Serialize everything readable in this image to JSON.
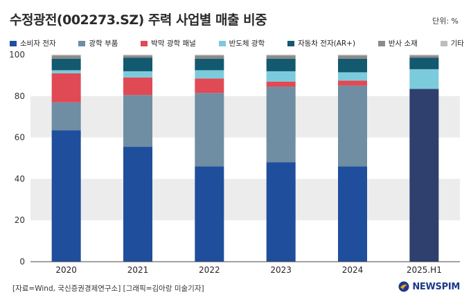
{
  "title": "수정광전(002273.SZ) 주력 사업별 매출 비중",
  "unit": "단위: %",
  "source": "[자료=Wind, 국신증권경제연구소] [그래픽=김아랑 미술기자]",
  "logo": "NEWSPIM",
  "colors": {
    "consumer": "#1f4e9c",
    "optics": "#6f8ea3",
    "film": "#e04a55",
    "semi": "#7ccbdc",
    "auto": "#13596f",
    "reflect": "#8a8a8a",
    "other": "#bdbdbd",
    "band": "#ececec"
  },
  "chart_data": {
    "type": "bar",
    "stacked": true,
    "categories": [
      "2020",
      "2021",
      "2022",
      "2023",
      "2024",
      "2025.H1"
    ],
    "ylim": [
      0,
      100
    ],
    "yticks": [
      0,
      20,
      40,
      60,
      80,
      100
    ],
    "legend_position": "top",
    "series": [
      {
        "name": "소비자 전자",
        "key": "consumer",
        "values": [
          63.5,
          55.5,
          46.0,
          48.0,
          46.0,
          83.5
        ]
      },
      {
        "name": "광학 부품",
        "key": "optics",
        "values": [
          13.5,
          25.0,
          35.5,
          36.5,
          39.0,
          0
        ]
      },
      {
        "name": "박막 광학 패널",
        "key": "film",
        "values": [
          14.0,
          8.5,
          7.0,
          2.5,
          2.5,
          0
        ]
      },
      {
        "name": "반도체 광학",
        "key": "semi",
        "values": [
          1.5,
          3.0,
          4.0,
          5.0,
          4.0,
          9.5
        ]
      },
      {
        "name": "자동차 전자(AR+)",
        "key": "auto",
        "values": [
          5.5,
          6.5,
          5.5,
          6.0,
          6.5,
          5.5
        ]
      },
      {
        "name": "반사 소재",
        "key": "reflect",
        "values": [
          1.5,
          1.0,
          1.5,
          1.5,
          1.5,
          1.0
        ]
      },
      {
        "name": "기타",
        "key": "other",
        "values": [
          0.5,
          0.5,
          0.5,
          0.5,
          0.5,
          0.5
        ]
      }
    ]
  }
}
